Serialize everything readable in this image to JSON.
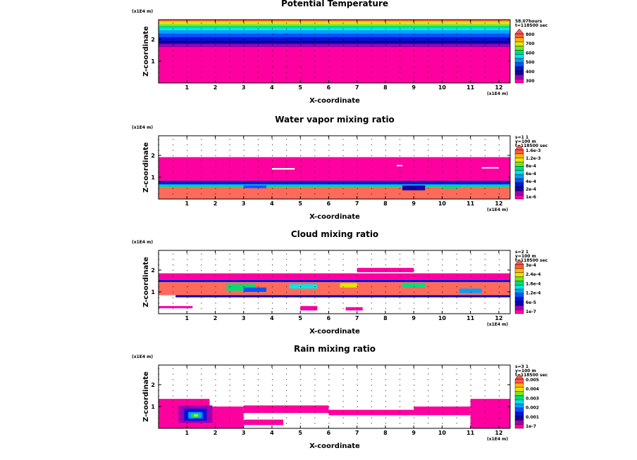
{
  "chart_data": [
    {
      "type": "heatmap",
      "id": "pt",
      "title": "Potential Temperature",
      "xlabel": "X-coordinate",
      "ylabel": "Z-coordinate",
      "x_unit": "(x1E4 m)",
      "z_unit": "(x1E4 m)",
      "xlim": [
        0,
        12.4
      ],
      "ylim": [
        0,
        2.9
      ],
      "x_ticks": [
        "1",
        "2",
        "3",
        "4",
        "5",
        "6",
        "7",
        "8",
        "9",
        "10",
        "11",
        "12"
      ],
      "y_ticks": [
        "1",
        "2"
      ],
      "info": [
        "58.07hours",
        "t=118500 sec"
      ],
      "legend_labels": [
        "300",
        "400",
        "500",
        "600",
        "700",
        "800"
      ],
      "palette": [
        "#ff00a0",
        "#9b00b4",
        "#1400a0",
        "#0014dc",
        "#0055ff",
        "#00a0ff",
        "#00e6e6",
        "#00dc78",
        "#78e61e",
        "#e6e600",
        "#ffb400",
        "#ff5a46"
      ],
      "bands": [
        {
          "z0": 0.0,
          "z1": 1.62,
          "color": "#ff00a0"
        },
        {
          "z0": 1.62,
          "z1": 1.78,
          "color": "#9b00b4"
        },
        {
          "z0": 1.78,
          "z1": 1.95,
          "color": "#1400a0"
        },
        {
          "z0": 1.95,
          "z1": 2.12,
          "color": "#0014dc"
        },
        {
          "z0": 2.12,
          "z1": 2.28,
          "color": "#0055ff"
        },
        {
          "z0": 2.28,
          "z1": 2.42,
          "color": "#00a0ff"
        },
        {
          "z0": 2.42,
          "z1": 2.52,
          "color": "#00e6e6"
        },
        {
          "z0": 2.52,
          "z1": 2.62,
          "color": "#00dc78"
        },
        {
          "z0": 2.62,
          "z1": 2.7,
          "color": "#78e61e"
        },
        {
          "z0": 2.7,
          "z1": 2.78,
          "color": "#e6e600"
        },
        {
          "z0": 2.78,
          "z1": 2.85,
          "color": "#ffb400"
        },
        {
          "z0": 2.85,
          "z1": 2.9,
          "color": "#ff5a46"
        }
      ],
      "patches": []
    },
    {
      "type": "heatmap",
      "id": "qv",
      "title": "Water vapor mixing ratio",
      "xlabel": "X-coordinate",
      "ylabel": "Z-coordinate",
      "x_unit": "(x1E4 m)",
      "z_unit": "(x1E4 m)",
      "xlim": [
        0,
        12.4
      ],
      "ylim": [
        0,
        2.9
      ],
      "x_ticks": [
        "1",
        "2",
        "3",
        "4",
        "5",
        "6",
        "7",
        "8",
        "9",
        "10",
        "11",
        "12"
      ],
      "y_ticks": [
        "1",
        "2"
      ],
      "info": [
        "s=1 1",
        "y=100 m",
        "t=118500 sec"
      ],
      "legend_labels": [
        "1e-6",
        "2e-4",
        "4e-4",
        "6e-4",
        "8e-4",
        "1.2e-3",
        "1.6e-3"
      ],
      "palette": [
        "#ff00a0",
        "#9b00b4",
        "#1400a0",
        "#0014dc",
        "#0055ff",
        "#00a0ff",
        "#00e6e6",
        "#00dc78",
        "#78e61e",
        "#e6e600",
        "#ffb400",
        "#ff5a46"
      ],
      "bands": [
        {
          "z0": 0.0,
          "z1": 0.55,
          "color": "#ff6a5a"
        },
        {
          "z0": 0.55,
          "z1": 0.62,
          "color": "#00dc78"
        },
        {
          "z0": 0.62,
          "z1": 0.68,
          "color": "#00a0ff"
        },
        {
          "z0": 0.68,
          "z1": 0.76,
          "color": "#0014dc"
        },
        {
          "z0": 0.76,
          "z1": 0.84,
          "color": "#1400a0"
        },
        {
          "z0": 0.84,
          "z1": 1.92,
          "color": "#ff00a0"
        }
      ],
      "patches": [
        {
          "x0": 4.0,
          "x1": 4.8,
          "z0": 1.35,
          "z1": 1.42,
          "color": "#ffffff"
        },
        {
          "x0": 8.4,
          "x1": 8.6,
          "z0": 1.5,
          "z1": 1.56,
          "color": "#ffffff"
        },
        {
          "x0": 11.4,
          "x1": 12.0,
          "z0": 1.4,
          "z1": 1.46,
          "color": "#ffffff"
        },
        {
          "x0": 8.6,
          "x1": 9.4,
          "z0": 0.4,
          "z1": 0.62,
          "color": "#1400a0"
        },
        {
          "x0": 3.0,
          "x1": 3.8,
          "z0": 0.5,
          "z1": 0.62,
          "color": "#0055ff"
        },
        {
          "x0": 10.0,
          "x1": 10.6,
          "z0": 0.48,
          "z1": 0.6,
          "color": "#00dc78"
        }
      ]
    },
    {
      "type": "heatmap",
      "id": "qc",
      "title": "Cloud mixing ratio",
      "xlabel": "X-coordinate",
      "ylabel": "Z-coordinate",
      "x_unit": "(x1E4 m)",
      "z_unit": "(x1E4 m)",
      "xlim": [
        0,
        12.4
      ],
      "ylim": [
        0,
        2.9
      ],
      "x_ticks": [
        "1",
        "2",
        "3",
        "4",
        "5",
        "6",
        "7",
        "8",
        "9",
        "10",
        "11",
        "12"
      ],
      "y_ticks": [
        "1",
        "2"
      ],
      "info": [
        "s=2 1",
        "y=100 m",
        "t=118500 sec"
      ],
      "legend_labels": [
        "1e-7",
        "6e-5",
        "1.2e-4",
        "1.8e-4",
        "2.4e-4",
        "3e-4"
      ],
      "palette": [
        "#ff00a0",
        "#9b00b4",
        "#1400a0",
        "#0014dc",
        "#0055ff",
        "#00a0ff",
        "#00e6e6",
        "#00dc78",
        "#78e61e",
        "#e6e600",
        "#ffb400",
        "#ff5a46"
      ],
      "bands": [
        {
          "z0": 1.55,
          "z1": 1.85,
          "color": "#ff00a0"
        },
        {
          "z0": 1.45,
          "z1": 1.55,
          "color": "#0014dc"
        },
        {
          "z0": 0.85,
          "z1": 1.45,
          "color": "#ff6a5a"
        },
        {
          "z0": 0.75,
          "z1": 0.85,
          "color": "#1400a0"
        }
      ],
      "patches": [
        {
          "x0": 0.0,
          "x1": 0.6,
          "z0": 0.55,
          "z1": 0.85,
          "color": "#ffffff"
        },
        {
          "x0": 0.0,
          "x1": 1.2,
          "z0": 0.25,
          "z1": 0.35,
          "color": "#ff00a0"
        },
        {
          "x0": 2.4,
          "x1": 3.4,
          "z0": 1.05,
          "z1": 1.35,
          "color": "#00dc78"
        },
        {
          "x0": 3.0,
          "x1": 3.8,
          "z0": 1.0,
          "z1": 1.2,
          "color": "#0055ff"
        },
        {
          "x0": 4.6,
          "x1": 5.6,
          "z0": 1.15,
          "z1": 1.35,
          "color": "#00e6e6"
        },
        {
          "x0": 6.4,
          "x1": 7.0,
          "z0": 1.2,
          "z1": 1.4,
          "color": "#e6e600"
        },
        {
          "x0": 8.6,
          "x1": 9.4,
          "z0": 1.2,
          "z1": 1.4,
          "color": "#00dc78"
        },
        {
          "x0": 10.6,
          "x1": 11.4,
          "z0": 0.95,
          "z1": 1.15,
          "color": "#00a0ff"
        },
        {
          "x0": 7.0,
          "x1": 9.0,
          "z0": 1.9,
          "z1": 2.1,
          "color": "#ff00a0"
        },
        {
          "x0": 5.0,
          "x1": 5.6,
          "z0": 0.15,
          "z1": 0.35,
          "color": "#ff00a0"
        },
        {
          "x0": 6.6,
          "x1": 7.2,
          "z0": 0.15,
          "z1": 0.3,
          "color": "#ff00a0"
        }
      ]
    },
    {
      "type": "heatmap",
      "id": "qr",
      "title": "Rain mixing ratio",
      "xlabel": "X-coordinate",
      "ylabel": "Z-coordinate",
      "x_unit": "(x1E4 m)",
      "z_unit": "(x1E4 m)",
      "xlim": [
        0,
        12.4
      ],
      "ylim": [
        0,
        2.9
      ],
      "x_ticks": [
        "1",
        "2",
        "3",
        "4",
        "5",
        "6",
        "7",
        "8",
        "9",
        "10",
        "11",
        "12"
      ],
      "y_ticks": [
        "1",
        "2"
      ],
      "info": [
        "s=3 1",
        "y=100 m",
        "t=118500 sec"
      ],
      "legend_labels": [
        "1e-7",
        "0.001",
        "0.002",
        "0.003",
        "0.004",
        "0.005"
      ],
      "palette": [
        "#ff00a0",
        "#9b00b4",
        "#1400a0",
        "#0014dc",
        "#0055ff",
        "#00a0ff",
        "#00e6e6",
        "#00dc78",
        "#78e61e",
        "#e6e600",
        "#ffb400",
        "#ff5a46"
      ],
      "bands": [],
      "patches": [
        {
          "x0": 0.0,
          "x1": 1.8,
          "z0": 0.0,
          "z1": 1.35,
          "color": "#ff00a0"
        },
        {
          "x0": 1.8,
          "x1": 3.0,
          "z0": 0.0,
          "z1": 1.0,
          "color": "#ff00a0"
        },
        {
          "x0": 3.0,
          "x1": 6.0,
          "z0": 0.7,
          "z1": 1.05,
          "color": "#ff00a0"
        },
        {
          "x0": 3.0,
          "x1": 4.4,
          "z0": 0.15,
          "z1": 0.4,
          "color": "#ff00a0"
        },
        {
          "x0": 6.0,
          "x1": 9.0,
          "z0": 0.6,
          "z1": 0.85,
          "color": "#ff00a0"
        },
        {
          "x0": 9.0,
          "x1": 11.0,
          "z0": 0.6,
          "z1": 1.0,
          "color": "#ff00a0"
        },
        {
          "x0": 11.0,
          "x1": 12.4,
          "z0": 0.0,
          "z1": 1.35,
          "color": "#ff00a0"
        },
        {
          "x0": 0.7,
          "x1": 1.9,
          "z0": 0.25,
          "z1": 1.05,
          "color": "#9b00b4"
        },
        {
          "x0": 0.9,
          "x1": 1.7,
          "z0": 0.35,
          "z1": 0.9,
          "color": "#0014dc"
        },
        {
          "x0": 1.05,
          "x1": 1.55,
          "z0": 0.45,
          "z1": 0.75,
          "color": "#00a0ff"
        },
        {
          "x0": 1.15,
          "x1": 1.45,
          "z0": 0.5,
          "z1": 0.68,
          "color": "#00dc78"
        },
        {
          "x0": 1.25,
          "x1": 1.38,
          "z0": 0.54,
          "z1": 0.64,
          "color": "#e6e600"
        }
      ]
    }
  ]
}
